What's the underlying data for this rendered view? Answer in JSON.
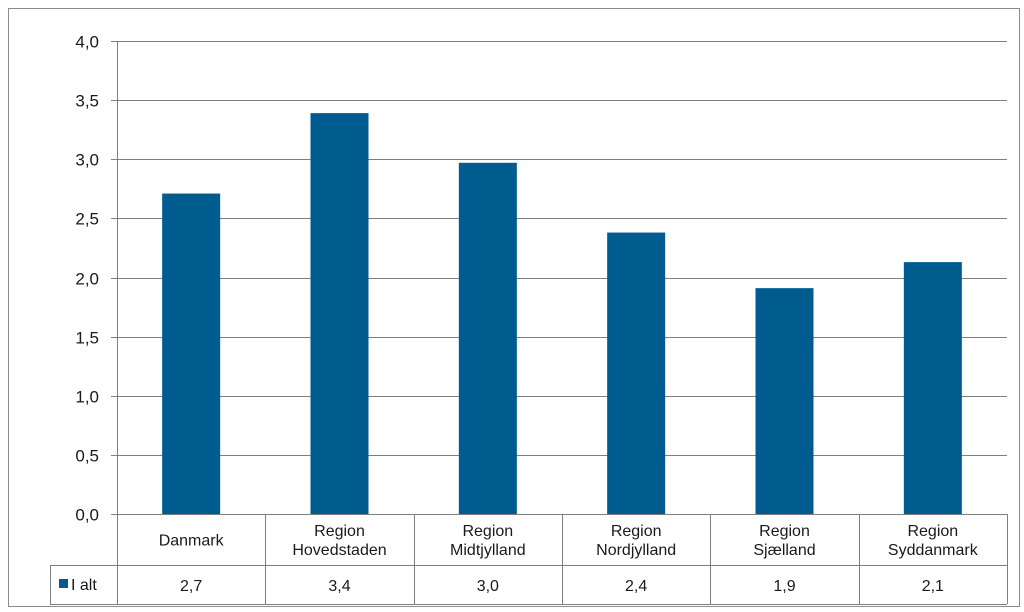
{
  "chart_data": {
    "type": "bar",
    "categories": [
      [
        "Danmark"
      ],
      [
        "Region",
        "Hovedstaden"
      ],
      [
        "Region",
        "Midtjylland"
      ],
      [
        "Region",
        "Nordjylland"
      ],
      [
        "Region",
        "Sjælland"
      ],
      [
        "Region",
        "Syddanmark"
      ]
    ],
    "series": [
      {
        "name": "I alt",
        "color": "#005b8f",
        "values": [
          2.71,
          3.39,
          2.97,
          2.38,
          1.91,
          2.13
        ],
        "table_labels": [
          "2,7",
          "3,4",
          "3,0",
          "2,4",
          "1,9",
          "2,1"
        ]
      }
    ],
    "y_ticks": [
      "0,0",
      "0,5",
      "1,0",
      "1,5",
      "2,0",
      "2,5",
      "3,0",
      "3,5",
      "4,0"
    ],
    "ylim": [
      0,
      4
    ],
    "grid": true,
    "data_table": true,
    "legend": "in-data-table",
    "gridline_color": "#7f7f7f"
  }
}
